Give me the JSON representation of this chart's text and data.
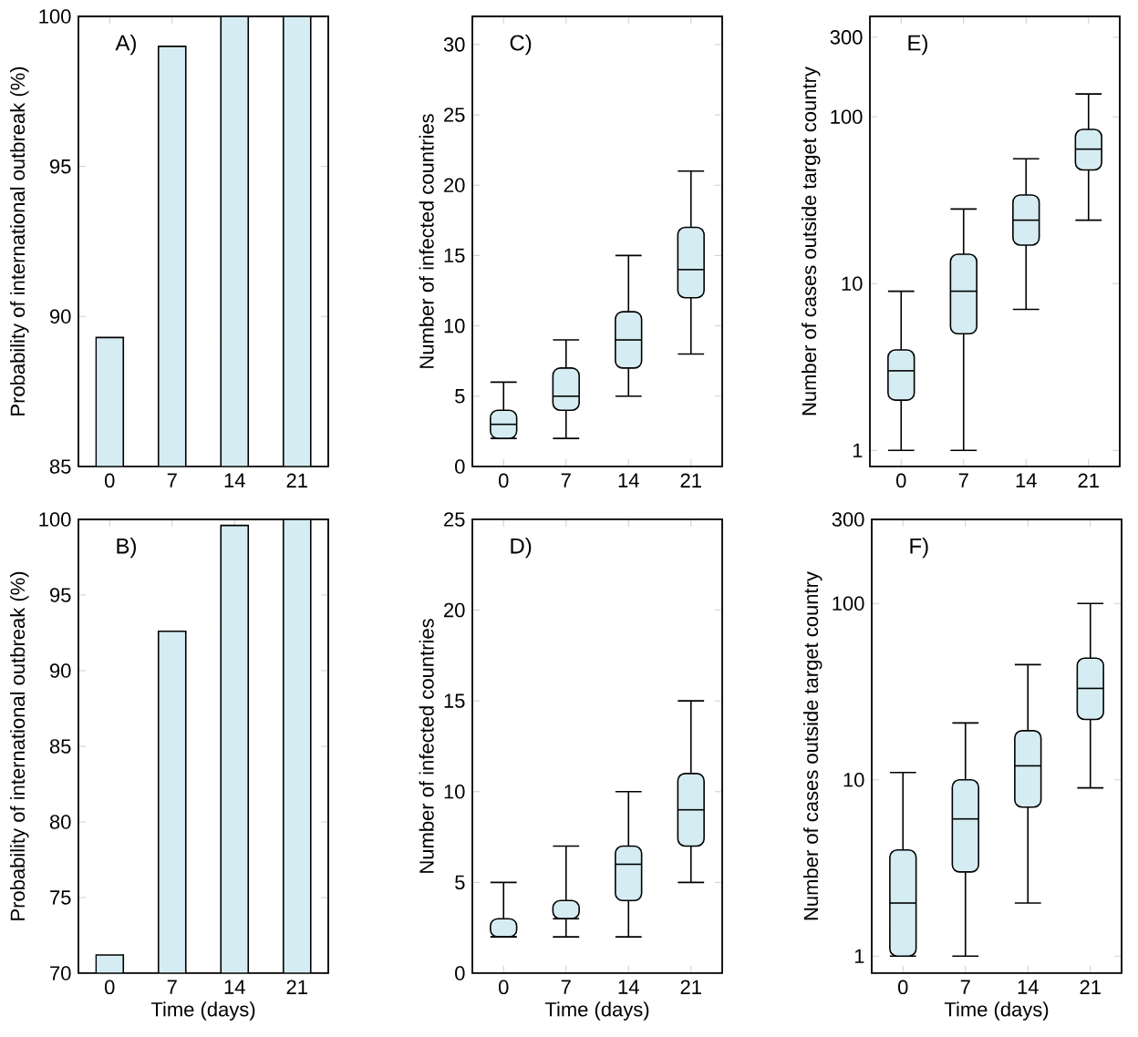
{
  "chart_data": [
    {
      "type": "bar",
      "categories": [
        "0",
        "7",
        "14",
        "21"
      ],
      "values": [
        89.3,
        99.0,
        100,
        100
      ],
      "color": "#d6ecf3",
      "ylabel": "Probability of international outbreak (%)",
      "ylim": [
        85,
        100
      ],
      "yticks": [
        85,
        90,
        95,
        100
      ],
      "annotations": [
        "A)"
      ]
    },
    {
      "type": "box",
      "categories": [
        "0",
        "7",
        "14",
        "21"
      ],
      "color": "#d6ecf3",
      "ylabel": "Number of infected countries",
      "ylim": [
        0,
        32
      ],
      "yticks": [
        0,
        5,
        10,
        15,
        20,
        25,
        30
      ],
      "annotations": [
        "C)"
      ],
      "boxes": [
        {
          "low": 2,
          "q1": 2,
          "median": 3,
          "q3": 4,
          "high": 6
        },
        {
          "low": 2,
          "q1": 4,
          "median": 5,
          "q3": 7,
          "high": 9
        },
        {
          "low": 5,
          "q1": 7,
          "median": 9,
          "q3": 11,
          "high": 15
        },
        {
          "low": 8,
          "q1": 12,
          "median": 14,
          "q3": 17,
          "high": 21
        }
      ]
    },
    {
      "type": "box",
      "categories": [
        "0",
        "7",
        "14",
        "21"
      ],
      "color": "#d6ecf3",
      "ylabel": "Number of cases outside target country",
      "log": true,
      "ylim": [
        0.8,
        400
      ],
      "yticks": [
        1,
        10,
        100,
        300
      ],
      "annotations": [
        "E)"
      ],
      "boxes": [
        {
          "low": 1,
          "q1": 2,
          "median": 3,
          "q3": 4,
          "high": 9
        },
        {
          "low": 1,
          "q1": 5,
          "median": 9,
          "q3": 15,
          "high": 28
        },
        {
          "low": 7,
          "q1": 17,
          "median": 24,
          "q3": 34,
          "high": 56
        },
        {
          "low": 24,
          "q1": 48,
          "median": 64,
          "q3": 84,
          "high": 137
        }
      ]
    },
    {
      "type": "bar",
      "categories": [
        "0",
        "7",
        "14",
        "21"
      ],
      "values": [
        71.2,
        92.6,
        99.6,
        100
      ],
      "color": "#d6ecf3",
      "xlabel": "Time (days)",
      "ylabel": "Probability of international outbreak (%)",
      "ylim": [
        70,
        100
      ],
      "yticks": [
        70,
        75,
        80,
        85,
        90,
        95,
        100
      ],
      "annotations": [
        "B)"
      ]
    },
    {
      "type": "box",
      "categories": [
        "0",
        "7",
        "14",
        "21"
      ],
      "color": "#d6ecf3",
      "xlabel": "Time (days)",
      "ylabel": "Number of infected countries",
      "ylim": [
        0,
        25
      ],
      "yticks": [
        0,
        5,
        10,
        15,
        20,
        25
      ],
      "annotations": [
        "D)"
      ],
      "boxes": [
        {
          "low": 2,
          "q1": 2,
          "median": 2,
          "q3": 3,
          "high": 5
        },
        {
          "low": 2,
          "q1": 3,
          "median": 3,
          "q3": 4,
          "high": 7
        },
        {
          "low": 2,
          "q1": 4,
          "median": 6,
          "q3": 7,
          "high": 10
        },
        {
          "low": 5,
          "q1": 7,
          "median": 9,
          "q3": 11,
          "high": 15
        }
      ]
    },
    {
      "type": "box",
      "categories": [
        "0",
        "7",
        "14",
        "21"
      ],
      "color": "#d6ecf3",
      "xlabel": "Time (days)",
      "ylabel": "Number of cases outside target country",
      "log": true,
      "ylim": [
        0.8,
        300
      ],
      "yticks": [
        1,
        10,
        100,
        300
      ],
      "annotations": [
        "F)"
      ],
      "boxes": [
        {
          "low": 1,
          "q1": 1,
          "median": 2,
          "q3": 4,
          "high": 11
        },
        {
          "low": 1,
          "q1": 3,
          "median": 6,
          "q3": 10,
          "high": 21
        },
        {
          "low": 2,
          "q1": 7,
          "median": 12,
          "q3": 19,
          "high": 45
        },
        {
          "low": 9,
          "q1": 22,
          "median": 33,
          "q3": 49,
          "high": 100
        }
      ]
    }
  ]
}
